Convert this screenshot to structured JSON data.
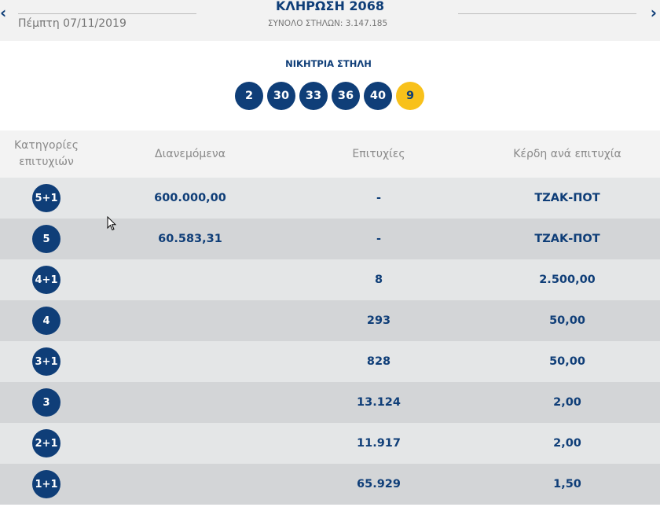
{
  "header": {
    "prev_icon": "‹",
    "next_icon": "›",
    "date": "Πέμπτη 07/11/2019",
    "title": "ΚΛΗΡΩΣΗ 2068",
    "total_columns": "ΣΥΝΟΛΟ ΣΤΗΛΩΝ: 3.147.185"
  },
  "winning": {
    "label": "ΝΙΚΗΤΡΙΑ ΣΤΗΛΗ",
    "numbers": [
      "2",
      "30",
      "33",
      "36",
      "40"
    ],
    "bonus": "9"
  },
  "table": {
    "headers": {
      "category": "Κατηγορίες επιτυχιών",
      "distributed": "Διανεμόμενα",
      "winners": "Επιτυχίες",
      "prize_per_winner": "Κέρδη ανά επιτυχία"
    },
    "rows": [
      {
        "category": "5+1",
        "distributed": "600.000,00",
        "winners": "-",
        "prize": "ΤΖΑΚ-ΠΟΤ"
      },
      {
        "category": "5",
        "distributed": "60.583,31",
        "winners": "-",
        "prize": "ΤΖΑΚ-ΠΟΤ"
      },
      {
        "category": "4+1",
        "distributed": "",
        "winners": "8",
        "prize": "2.500,00"
      },
      {
        "category": "4",
        "distributed": "",
        "winners": "293",
        "prize": "50,00"
      },
      {
        "category": "3+1",
        "distributed": "",
        "winners": "828",
        "prize": "50,00"
      },
      {
        "category": "3",
        "distributed": "",
        "winners": "13.124",
        "prize": "2,00"
      },
      {
        "category": "2+1",
        "distributed": "",
        "winners": "11.917",
        "prize": "2,00"
      },
      {
        "category": "1+1",
        "distributed": "",
        "winners": "65.929",
        "prize": "1,50"
      }
    ]
  },
  "colors": {
    "brand_blue": "#0f3e78",
    "bonus_yellow": "#f8c11b"
  }
}
